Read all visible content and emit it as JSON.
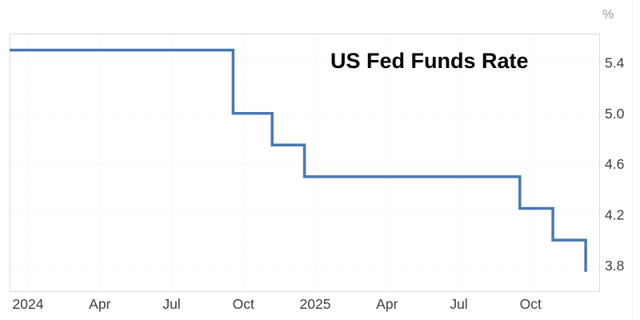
{
  "chart_data": {
    "type": "line",
    "step": true,
    "title": "US Fed Funds Rate",
    "unit_label": "%",
    "grid": true,
    "legend_position": "none",
    "x_range_months": [
      -0.77,
      23.9
    ],
    "y_range": [
      3.59,
      5.63
    ],
    "x_ticks": [
      {
        "label": "2024",
        "month": 0
      },
      {
        "label": "Apr",
        "month": 3
      },
      {
        "label": "Jul",
        "month": 6
      },
      {
        "label": "Oct",
        "month": 9
      },
      {
        "label": "2025",
        "month": 12
      },
      {
        "label": "Apr",
        "month": 15
      },
      {
        "label": "Jul",
        "month": 18
      },
      {
        "label": "Oct",
        "month": 21
      }
    ],
    "y_ticks": [
      5.4,
      5.0,
      4.6,
      4.2,
      3.8
    ],
    "series": [
      {
        "name": "US Fed Funds Rate",
        "color": "#4a78b0",
        "points": [
          {
            "date": "Dec 2023",
            "month": -0.77,
            "value": 5.5
          },
          {
            "date": "Sep 2024",
            "month": 8.57,
            "value": 5.0
          },
          {
            "date": "Nov 2024",
            "month": 10.2,
            "value": 4.75
          },
          {
            "date": "Dec 2024",
            "month": 11.55,
            "value": 4.5
          },
          {
            "date": "Sep 2025",
            "month": 20.55,
            "value": 4.25
          },
          {
            "date": "Oct 2025",
            "month": 21.93,
            "value": 4.0
          },
          {
            "date": "Dec 2025",
            "month": 23.3,
            "value": 3.75
          }
        ]
      }
    ],
    "colors": {
      "line": "#4a78b0",
      "grid": "#e9e9e9",
      "plot_border": "#dcdcdc",
      "tick_label": "#3d3d3d",
      "unit_label": "#999999",
      "title": "#000000",
      "background": "#ffffff"
    }
  }
}
